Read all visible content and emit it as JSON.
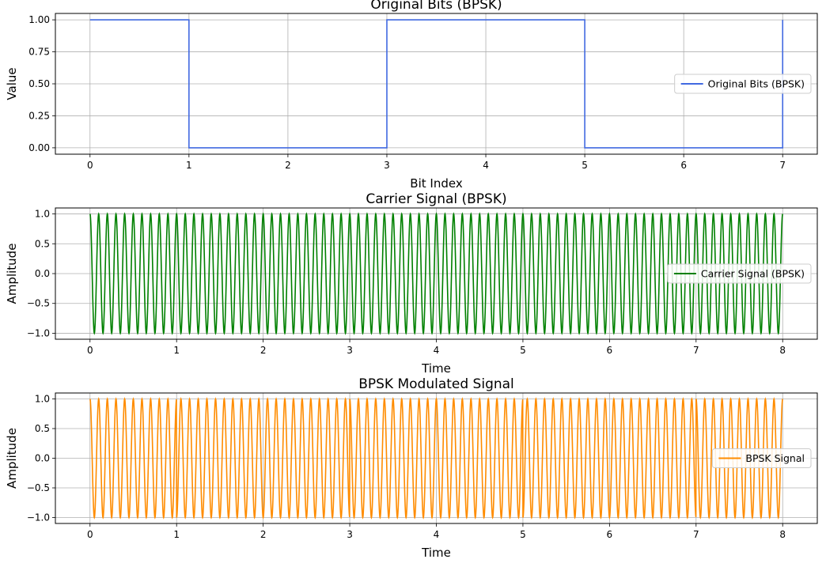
{
  "chart_data": [
    {
      "type": "line",
      "step": true,
      "title": "Original Bits (BPSK)",
      "xlabel": "Bit Index",
      "ylabel": "Value",
      "xlim": [
        -0.35,
        7.35
      ],
      "ylim": [
        -0.05,
        1.05
      ],
      "xticks": [
        0,
        1,
        2,
        3,
        4,
        5,
        6,
        7
      ],
      "xtick_labels": [
        "0",
        "1",
        "2",
        "3",
        "4",
        "5",
        "6",
        "7"
      ],
      "yticks": [
        0,
        0.25,
        0.5,
        0.75,
        1
      ],
      "ytick_labels": [
        "0.00",
        "0.25",
        "0.50",
        "0.75",
        "1.00"
      ],
      "grid": true,
      "legend_position": "center-right",
      "series": [
        {
          "name": "Original Bits (BPSK)",
          "color": "#4169e1",
          "x": [
            0,
            1,
            1,
            3,
            3,
            5,
            5,
            7,
            7
          ],
          "y": [
            1,
            1,
            0,
            0,
            1,
            1,
            0,
            0,
            1
          ]
        }
      ]
    },
    {
      "type": "line",
      "title": "Carrier Signal (BPSK)",
      "xlabel": "Time",
      "ylabel": "Amplitude",
      "xlim": [
        -0.4,
        8.4
      ],
      "ylim": [
        -1.1,
        1.1
      ],
      "xticks": [
        0,
        1,
        2,
        3,
        4,
        5,
        6,
        7,
        8
      ],
      "xtick_labels": [
        "0",
        "1",
        "2",
        "3",
        "4",
        "5",
        "6",
        "7",
        "8"
      ],
      "yticks": [
        -1,
        -0.5,
        0,
        0.5,
        1
      ],
      "ytick_labels": [
        "−1.0",
        "−0.5",
        "0.0",
        "0.5",
        "1.0"
      ],
      "grid": true,
      "legend_position": "center-right",
      "signal": {
        "kind": "cosine",
        "cycles_per_unit": 10,
        "t_start": 0,
        "t_end": 8
      },
      "series": [
        {
          "name": "Carrier Signal (BPSK)",
          "color": "#008000"
        }
      ]
    },
    {
      "type": "line",
      "title": "BPSK Modulated Signal",
      "xlabel": "Time",
      "ylabel": "Amplitude",
      "xlim": [
        -0.4,
        8.4
      ],
      "ylim": [
        -1.1,
        1.1
      ],
      "xticks": [
        0,
        1,
        2,
        3,
        4,
        5,
        6,
        7,
        8
      ],
      "xtick_labels": [
        "0",
        "1",
        "2",
        "3",
        "4",
        "5",
        "6",
        "7",
        "8"
      ],
      "yticks": [
        -1,
        -0.5,
        0,
        0.5,
        1
      ],
      "ytick_labels": [
        "−1.0",
        "−0.5",
        "0.0",
        "0.5",
        "1.0"
      ],
      "grid": true,
      "legend_position": "center-right",
      "signal": {
        "kind": "bpsk-cosine",
        "cycles_per_unit": 10,
        "t_start": 0,
        "t_end": 8,
        "bits": [
          1,
          0,
          0,
          1,
          1,
          0,
          0,
          1
        ]
      },
      "series": [
        {
          "name": "BPSK Signal",
          "color": "#ff8c00"
        }
      ]
    }
  ]
}
